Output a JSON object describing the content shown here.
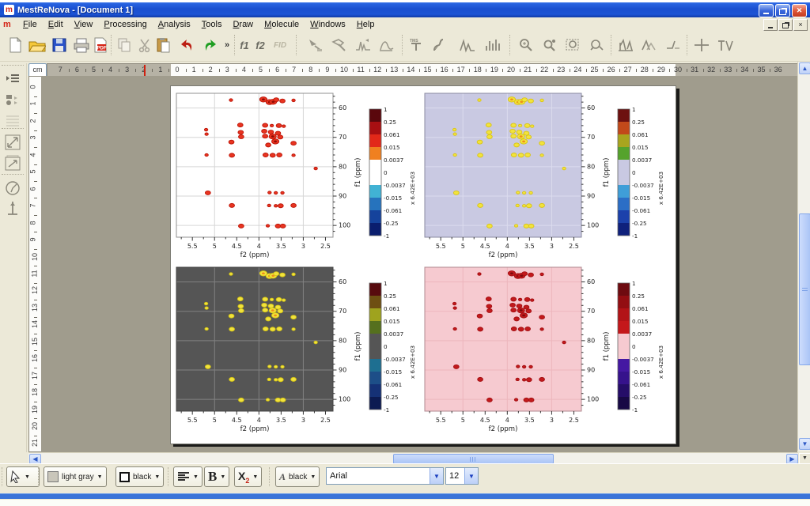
{
  "window": {
    "title": "MestReNova - [Document 1]"
  },
  "menu": {
    "items": [
      "File",
      "Edit",
      "View",
      "Processing",
      "Analysis",
      "Tools",
      "Draw",
      "Molecule",
      "Windows",
      "Help"
    ]
  },
  "toolbar": {
    "overflow": "»",
    "f1": "f1",
    "f2": "f2",
    "fid": "FID"
  },
  "ruler": {
    "unit": "cm",
    "h_numbers": [
      "7",
      "6",
      "5",
      "4",
      "3",
      "2",
      "1",
      "0",
      "1",
      "2",
      "3",
      "4",
      "5",
      "6",
      "7",
      "8",
      "9",
      "10",
      "11",
      "12",
      "13",
      "14",
      "15",
      "16",
      "17",
      "18",
      "19",
      "20",
      "21",
      "22",
      "23",
      "24",
      "25",
      "26",
      "27",
      "28",
      "29",
      "30",
      "31",
      "32",
      "33",
      "34",
      "35",
      "36"
    ],
    "v_numbers": [
      "0",
      "1",
      "2",
      "3",
      "4",
      "5",
      "6",
      "7",
      "8",
      "9",
      "10",
      "11",
      "12",
      "13",
      "14",
      "15",
      "16",
      "17",
      "18",
      "19",
      "20",
      "21"
    ]
  },
  "format_bar": {
    "fill_color_label": "light gray",
    "line_color_label": "black",
    "bold_label": "B",
    "subscript_base": "X",
    "subscript_sub": "2",
    "font_color_letter": "A",
    "font_color_label": "black",
    "font_family_value": "Arial",
    "font_size_value": "12"
  },
  "chart_data": [
    {
      "type": "scatter",
      "id": "contour-top-left",
      "xlabel": "f2 (ppm)",
      "ylabel": "f1 (ppm)",
      "x_ticks": [
        5.5,
        5,
        4.5,
        4,
        3.5,
        3,
        2.5
      ],
      "y_ticks": [
        60,
        70,
        80,
        90,
        100
      ],
      "xlim": [
        5.86,
        2.33
      ],
      "ylim": [
        55,
        104
      ],
      "grid": "on",
      "grid_x": [
        5,
        4,
        3
      ],
      "style": {
        "bg": "#ffffff",
        "grid": "#d6d6d6",
        "box": "#909090",
        "spot": "#e83420",
        "spot_stroke": "#bc1508",
        "core": "#8f0b04",
        "tick": "#333333"
      },
      "colorbar": {
        "labels": [
          "1",
          "0.25",
          "0.061",
          "0.015",
          "0.0037",
          "0",
          "-0.0037",
          "-0.015",
          "-0.061",
          "-0.25",
          "-1"
        ],
        "multiplier": "x 6.42E+03",
        "segments": [
          "#5a070c",
          "#a80f12",
          "#e22819",
          "#f08020",
          "#ffffff",
          "#ffffff",
          "#41b2d4",
          "#2673bd",
          "#15439c",
          "#0a1e6e"
        ]
      },
      "peaks": [
        [
          3.9,
          57.1,
          3
        ],
        [
          3.76,
          58.0,
          3
        ],
        [
          3.68,
          57.9,
          3
        ],
        [
          3.61,
          57.2,
          2
        ],
        [
          3.47,
          57.6,
          2
        ],
        [
          4.63,
          57.3,
          1
        ],
        [
          3.22,
          57.4,
          1
        ],
        [
          4.42,
          65.8,
          2
        ],
        [
          3.86,
          65.9,
          2
        ],
        [
          3.71,
          66.0,
          1
        ],
        [
          3.55,
          66.0,
          2
        ],
        [
          3.44,
          66.2,
          1
        ],
        [
          5.19,
          67.4,
          1
        ],
        [
          5.18,
          68.9,
          1
        ],
        [
          4.41,
          68.3,
          2
        ],
        [
          4.4,
          69.8,
          2
        ],
        [
          3.88,
          67.9,
          2
        ],
        [
          3.73,
          68.2,
          2
        ],
        [
          3.86,
          69.6,
          2
        ],
        [
          3.69,
          69.7,
          3
        ],
        [
          3.57,
          68.6,
          2
        ],
        [
          3.52,
          69.9,
          2
        ],
        [
          3.63,
          71.4,
          3
        ],
        [
          3.79,
          72.6,
          2
        ],
        [
          4.62,
          71.6,
          2
        ],
        [
          3.22,
          72.0,
          2
        ],
        [
          5.18,
          76.0,
          1
        ],
        [
          4.61,
          76.1,
          2
        ],
        [
          3.85,
          76.0,
          2
        ],
        [
          3.69,
          76.1,
          2
        ],
        [
          3.54,
          76.0,
          2
        ],
        [
          3.22,
          76.1,
          1
        ],
        [
          2.72,
          80.6,
          1
        ],
        [
          5.15,
          88.9,
          2
        ],
        [
          3.76,
          88.8,
          1
        ],
        [
          3.62,
          88.9,
          1
        ],
        [
          3.47,
          88.9,
          1
        ],
        [
          4.61,
          93.2,
          2
        ],
        [
          3.77,
          93.2,
          1
        ],
        [
          3.62,
          93.3,
          1
        ],
        [
          3.51,
          93.3,
          2
        ],
        [
          3.22,
          93.2,
          2
        ],
        [
          4.4,
          100.2,
          2
        ],
        [
          3.8,
          100.1,
          1
        ],
        [
          3.57,
          100.2,
          2
        ],
        [
          3.46,
          100.2,
          2
        ]
      ]
    },
    {
      "type": "scatter",
      "id": "contour-top-right",
      "xlabel": "f2 (ppm)",
      "ylabel": "f1 (ppm)",
      "x_ticks": [
        5.5,
        5,
        4.5,
        4,
        3.5,
        3,
        2.5
      ],
      "y_ticks": [
        60,
        70,
        80,
        90,
        100
      ],
      "xlim": [
        5.86,
        2.33
      ],
      "ylim": [
        55,
        104
      ],
      "grid": "on",
      "grid_x": [
        5,
        4,
        3
      ],
      "style": {
        "bg": "#c9c9e2",
        "grid": "#dcdcee",
        "box": "#8a8aa0",
        "spot": "#f2e33c",
        "spot_stroke": "#d9c414",
        "core": "#ef8e1a",
        "tick": "#333333"
      },
      "colorbar": {
        "labels": [
          "1",
          "0.25",
          "0.061",
          "0.015",
          "0.0037",
          "0",
          "-0.0037",
          "-0.015",
          "-0.061",
          "-0.25",
          "-1"
        ],
        "multiplier": "x 6.42E+03",
        "segments": [
          "#6d1110",
          "#c2491a",
          "#a8a51e",
          "#55a32c",
          "#c9c9e2",
          "#c9c9e2",
          "#3f9ed8",
          "#2b6ec6",
          "#1c41ab",
          "#0f217c"
        ]
      },
      "peaks_same_as": 0
    },
    {
      "type": "scatter",
      "id": "contour-bottom-left",
      "xlabel": "f2 (ppm)",
      "ylabel": "f1 (ppm)",
      "x_ticks": [
        5.5,
        5,
        4.5,
        4,
        3.5,
        3,
        2.5
      ],
      "y_ticks": [
        60,
        70,
        80,
        90,
        100
      ],
      "xlim": [
        5.86,
        2.33
      ],
      "ylim": [
        55,
        104
      ],
      "grid": "on",
      "grid_x": [
        5,
        4,
        3
      ],
      "style": {
        "bg": "#555555",
        "grid": "#828282",
        "box": "#444444",
        "spot": "#f2e33c",
        "spot_stroke": "#d4c414",
        "core": "#ef8e1a",
        "tick": "#333333"
      },
      "colorbar": {
        "labels": [
          "1",
          "0.25",
          "0.061",
          "0.015",
          "0.0037",
          "0",
          "-0.0037",
          "-0.015",
          "-0.061",
          "-0.25",
          "-1"
        ],
        "multiplier": "x 6.42E+03",
        "segments": [
          "#570a0e",
          "#6e4f12",
          "#9fa31e",
          "#55701e",
          "#555555",
          "#555555",
          "#1e6f91",
          "#1d4e88",
          "#153176",
          "#0c1b52"
        ]
      },
      "peaks_same_as": 0
    },
    {
      "type": "scatter",
      "id": "contour-bottom-right",
      "xlabel": "f2 (ppm)",
      "ylabel": "f1 (ppm)",
      "x_ticks": [
        5.5,
        5,
        4.5,
        4,
        3.5,
        3,
        2.5
      ],
      "y_ticks": [
        60,
        70,
        80,
        90,
        100
      ],
      "xlim": [
        5.86,
        2.33
      ],
      "ylim": [
        55,
        104
      ],
      "grid": "on",
      "grid_x": [
        5,
        4,
        3
      ],
      "style": {
        "bg": "#f6cad0",
        "grid": "#edb6bd",
        "box": "#b08a90",
        "spot": "#c2191c",
        "spot_stroke": "#a30f12",
        "core": "#7c090c",
        "tick": "#333333"
      },
      "colorbar": {
        "labels": [
          "1",
          "0.25",
          "0.061",
          "0.015",
          "0.0037",
          "0",
          "-0.0037",
          "-0.015",
          "-0.061",
          "-0.25",
          "-1"
        ],
        "multiplier": "x 6.42E+03",
        "segments": [
          "#6e0b10",
          "#930e12",
          "#b21317",
          "#c4181b",
          "#f6cad0",
          "#f6cad0",
          "#4418a2",
          "#36128c",
          "#250d68",
          "#180945"
        ]
      },
      "peaks_same_as": 0
    }
  ]
}
